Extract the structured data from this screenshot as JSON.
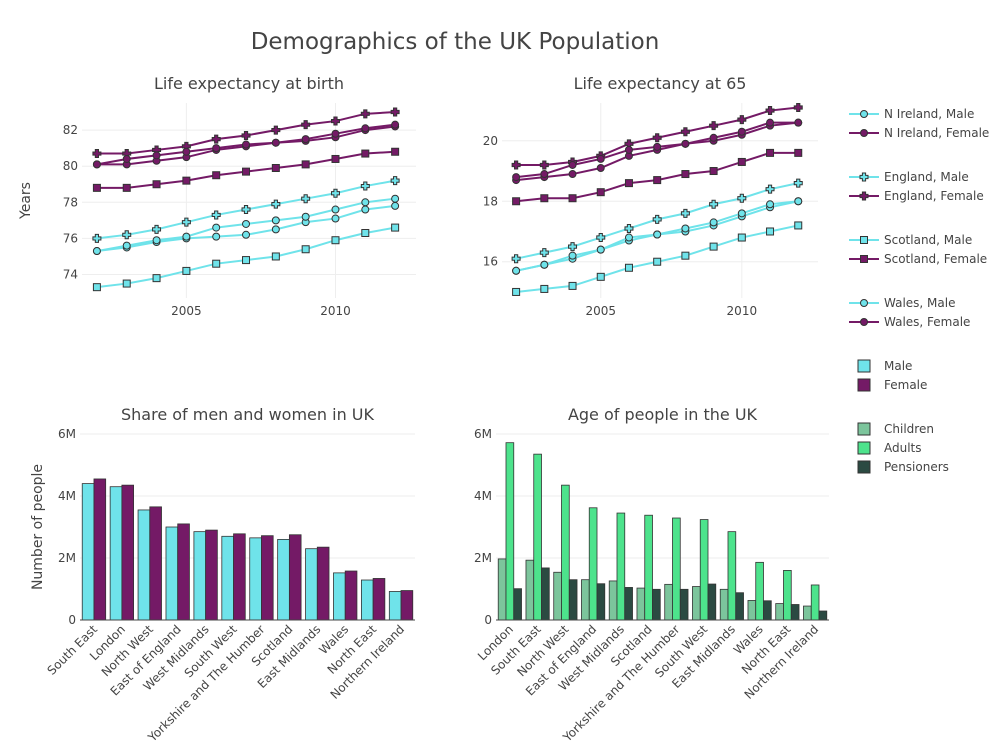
{
  "title": "Demographics of the UK Population",
  "colors": {
    "male": "#6fe3ea",
    "female": "#741a66",
    "children": "#7cc59c",
    "adults": "#4de38c",
    "pensioners": "#2b4a42",
    "grid": "#eeeeee",
    "text": "#444444"
  },
  "legend": {
    "lines": [
      {
        "name": "N Ireland, Male",
        "color": "#6fe3ea",
        "marker": "circle"
      },
      {
        "name": "N Ireland, Female",
        "color": "#741a66",
        "marker": "circle"
      },
      {
        "name": "England, Male",
        "color": "#6fe3ea",
        "marker": "cross"
      },
      {
        "name": "England, Female",
        "color": "#741a66",
        "marker": "cross"
      },
      {
        "name": "Scotland, Male",
        "color": "#6fe3ea",
        "marker": "square"
      },
      {
        "name": "Scotland, Female",
        "color": "#741a66",
        "marker": "square"
      },
      {
        "name": "Wales, Male",
        "color": "#6fe3ea",
        "marker": "circle"
      },
      {
        "name": "Wales, Female",
        "color": "#741a66",
        "marker": "circle"
      }
    ],
    "bars1": [
      {
        "name": "Male",
        "color": "#6fe3ea"
      },
      {
        "name": "Female",
        "color": "#741a66"
      }
    ],
    "bars2": [
      {
        "name": "Children",
        "color": "#7cc59c"
      },
      {
        "name": "Adults",
        "color": "#4de38c"
      },
      {
        "name": "Pensioners",
        "color": "#2b4a42"
      }
    ]
  },
  "chart_data": [
    {
      "type": "line",
      "title": "Life expectancy at birth",
      "ylabel": "Years",
      "xlabel": "",
      "x": [
        2002,
        2003,
        2004,
        2005,
        2006,
        2007,
        2008,
        2009,
        2010,
        2011,
        2012
      ],
      "xticks": [
        2005,
        2010
      ],
      "yticks": [
        74,
        76,
        78,
        80,
        82
      ],
      "ylim": [
        72.7,
        83.5
      ],
      "xlim": [
        2001.5,
        2012.7
      ],
      "series": [
        {
          "name": "N Ireland, Male",
          "marker": "circle",
          "color": "#6fe3ea",
          "values": [
            75.3,
            75.5,
            75.8,
            76.0,
            76.1,
            76.2,
            76.5,
            76.9,
            77.1,
            77.6,
            77.8
          ]
        },
        {
          "name": "N Ireland, Female",
          "marker": "circle",
          "color": "#741a66",
          "values": [
            80.1,
            80.1,
            80.3,
            80.5,
            80.9,
            81.1,
            81.3,
            81.4,
            81.6,
            82.0,
            82.2
          ]
        },
        {
          "name": "England, Male",
          "marker": "cross",
          "color": "#6fe3ea",
          "values": [
            76.0,
            76.2,
            76.5,
            76.9,
            77.3,
            77.6,
            77.9,
            78.2,
            78.5,
            78.9,
            79.2
          ]
        },
        {
          "name": "England, Female",
          "marker": "cross",
          "color": "#741a66",
          "values": [
            80.7,
            80.7,
            80.9,
            81.1,
            81.5,
            81.7,
            82.0,
            82.3,
            82.5,
            82.9,
            83.0
          ]
        },
        {
          "name": "Scotland, Male",
          "marker": "square",
          "color": "#6fe3ea",
          "values": [
            73.3,
            73.5,
            73.8,
            74.2,
            74.6,
            74.8,
            75.0,
            75.4,
            75.9,
            76.3,
            76.6
          ]
        },
        {
          "name": "Scotland, Female",
          "marker": "square",
          "color": "#741a66",
          "values": [
            78.8,
            78.8,
            79.0,
            79.2,
            79.5,
            79.7,
            79.9,
            80.1,
            80.4,
            80.7,
            80.8
          ]
        },
        {
          "name": "Wales, Male",
          "marker": "circle",
          "color": "#6fe3ea",
          "values": [
            75.3,
            75.6,
            75.9,
            76.1,
            76.6,
            76.8,
            77.0,
            77.2,
            77.6,
            78.0,
            78.2
          ]
        },
        {
          "name": "Wales, Female",
          "marker": "circle",
          "color": "#741a66",
          "values": [
            80.1,
            80.4,
            80.6,
            80.8,
            81.0,
            81.2,
            81.3,
            81.5,
            81.8,
            82.1,
            82.3
          ]
        }
      ]
    },
    {
      "type": "line",
      "title": "Life expectancy at 65",
      "ylabel": "",
      "xlabel": "",
      "x": [
        2002,
        2003,
        2004,
        2005,
        2006,
        2007,
        2008,
        2009,
        2010,
        2011,
        2012
      ],
      "xticks": [
        2005,
        2010
      ],
      "yticks": [
        16,
        18,
        20
      ],
      "ylim": [
        14.8,
        21.25
      ],
      "xlim": [
        2001.5,
        2012.7
      ],
      "series": [
        {
          "name": "N Ireland, Male",
          "marker": "circle",
          "color": "#6fe3ea",
          "values": [
            15.7,
            15.9,
            16.1,
            16.4,
            16.7,
            16.9,
            17.0,
            17.2,
            17.5,
            17.8,
            18.0
          ]
        },
        {
          "name": "N Ireland, Female",
          "marker": "circle",
          "color": "#741a66",
          "values": [
            18.7,
            18.8,
            18.9,
            19.1,
            19.5,
            19.7,
            19.9,
            20.0,
            20.2,
            20.5,
            20.6
          ]
        },
        {
          "name": "England, Male",
          "marker": "cross",
          "color": "#6fe3ea",
          "values": [
            16.1,
            16.3,
            16.5,
            16.8,
            17.1,
            17.4,
            17.6,
            17.9,
            18.1,
            18.4,
            18.6
          ]
        },
        {
          "name": "England, Female",
          "marker": "cross",
          "color": "#741a66",
          "values": [
            19.2,
            19.2,
            19.3,
            19.5,
            19.9,
            20.1,
            20.3,
            20.5,
            20.7,
            21.0,
            21.1
          ]
        },
        {
          "name": "Scotland, Male",
          "marker": "square",
          "color": "#6fe3ea",
          "values": [
            15.0,
            15.1,
            15.2,
            15.5,
            15.8,
            16.0,
            16.2,
            16.5,
            16.8,
            17.0,
            17.2
          ]
        },
        {
          "name": "Scotland, Female",
          "marker": "square",
          "color": "#741a66",
          "values": [
            18.0,
            18.1,
            18.1,
            18.3,
            18.6,
            18.7,
            18.9,
            19.0,
            19.3,
            19.6,
            19.6
          ]
        },
        {
          "name": "Wales, Male",
          "marker": "circle",
          "color": "#6fe3ea",
          "values": [
            15.7,
            15.9,
            16.2,
            16.4,
            16.8,
            16.9,
            17.1,
            17.3,
            17.6,
            17.9,
            18.0
          ]
        },
        {
          "name": "Wales, Female",
          "marker": "circle",
          "color": "#741a66",
          "values": [
            18.8,
            18.9,
            19.2,
            19.4,
            19.7,
            19.8,
            19.9,
            20.1,
            20.3,
            20.6,
            20.6
          ]
        }
      ]
    },
    {
      "type": "bar",
      "title": "Share of men and women in UK",
      "ylabel": "Number of people",
      "xlabel": "",
      "categories": [
        "South East",
        "London",
        "North West",
        "East of England",
        "West Midlands",
        "South West",
        "Yorkshire and The Humber",
        "Scotland",
        "East Midlands",
        "Wales",
        "North East",
        "Northern Ireland"
      ],
      "yticks": [
        0,
        2000000,
        4000000,
        6000000
      ],
      "ytick_labels": [
        "0",
        "2M",
        "4M",
        "6M"
      ],
      "ylim": [
        0,
        6000000
      ],
      "series": [
        {
          "name": "Male",
          "color": "#6fe3ea",
          "values": [
            4400000,
            4300000,
            3550000,
            3000000,
            2850000,
            2700000,
            2650000,
            2600000,
            2300000,
            1520000,
            1290000,
            920000
          ]
        },
        {
          "name": "Female",
          "color": "#741a66",
          "values": [
            4550000,
            4350000,
            3650000,
            3100000,
            2900000,
            2780000,
            2720000,
            2750000,
            2350000,
            1580000,
            1340000,
            950000
          ]
        }
      ]
    },
    {
      "type": "bar",
      "title": "Age of people in the UK",
      "ylabel": "",
      "xlabel": "",
      "categories": [
        "London",
        "South East",
        "North West",
        "East of England",
        "West Midlands",
        "Scotland",
        "Yorkshire and The Humber",
        "South West",
        "East Midlands",
        "Wales",
        "North East",
        "Northern Ireland"
      ],
      "yticks": [
        0,
        2000000,
        4000000,
        6000000
      ],
      "ytick_labels": [
        "0",
        "2M",
        "4M",
        "6M"
      ],
      "ylim": [
        0,
        6000000
      ],
      "series": [
        {
          "name": "Children",
          "color": "#7cc59c",
          "values": [
            1970000,
            1930000,
            1540000,
            1300000,
            1260000,
            1030000,
            1150000,
            1080000,
            990000,
            630000,
            530000,
            450000
          ]
        },
        {
          "name": "Adults",
          "color": "#4de38c",
          "values": [
            5720000,
            5350000,
            4350000,
            3620000,
            3450000,
            3380000,
            3290000,
            3240000,
            2850000,
            1860000,
            1600000,
            1130000
          ]
        },
        {
          "name": "Pensioners",
          "color": "#2b4a42",
          "values": [
            1010000,
            1680000,
            1300000,
            1170000,
            1050000,
            990000,
            990000,
            1160000,
            880000,
            620000,
            500000,
            290000
          ]
        }
      ]
    }
  ]
}
